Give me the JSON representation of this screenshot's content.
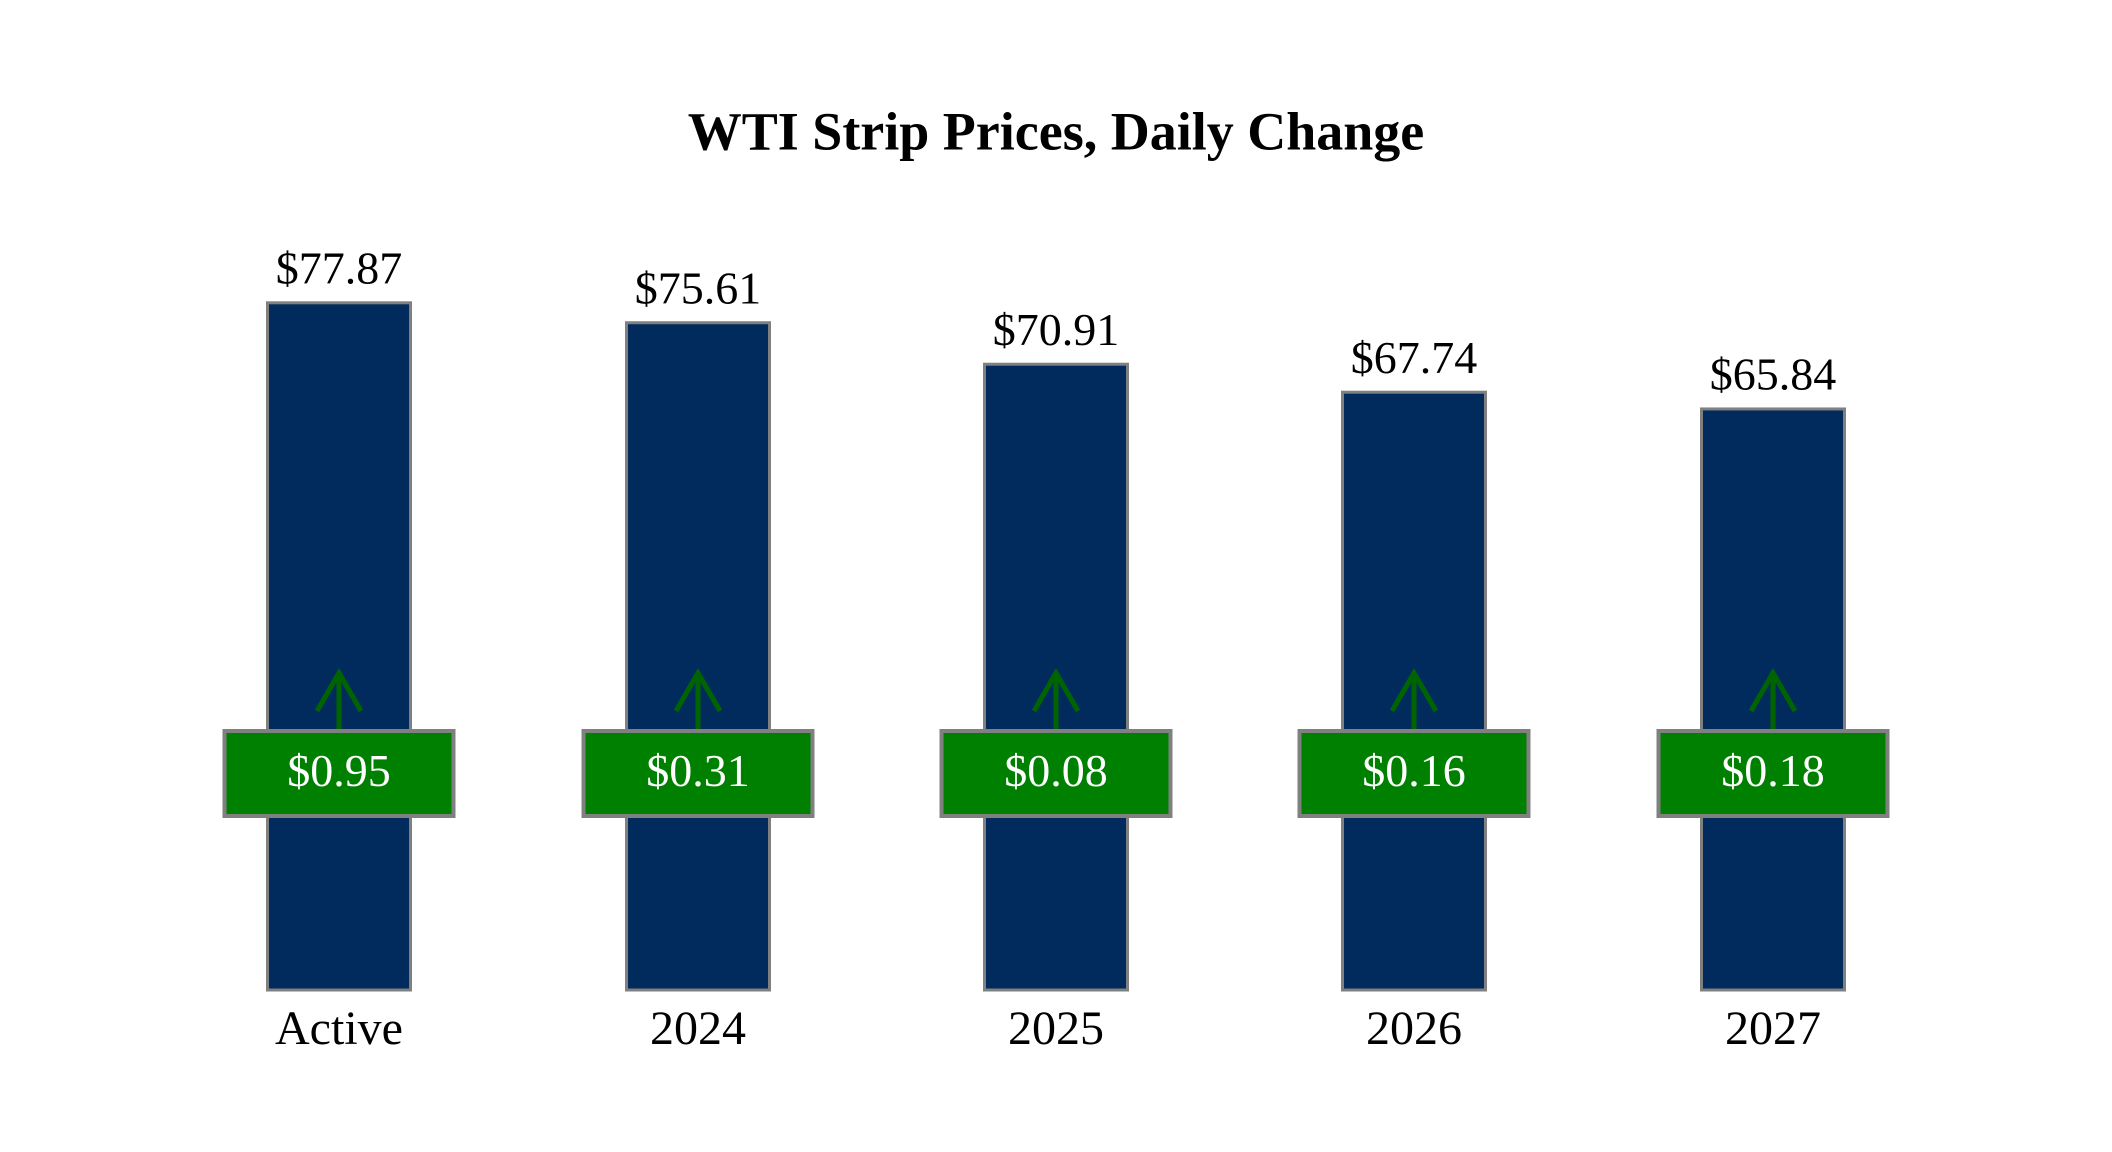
{
  "chart_data": {
    "type": "bar",
    "title": "WTI Strip Prices, Daily Change",
    "categories": [
      "Active",
      "2024",
      "2025",
      "2026",
      "2027"
    ],
    "values": [
      77.87,
      75.61,
      70.91,
      67.74,
      65.84
    ],
    "value_labels": [
      "$77.87",
      "$75.61",
      "$70.91",
      "$67.74",
      "$65.84"
    ],
    "color": "#002b5c",
    "ylim": [
      0,
      80
    ],
    "change": {
      "values": [
        0.95,
        0.31,
        0.08,
        0.16,
        0.18
      ],
      "value_labels": [
        "$0.95",
        "$0.31",
        "$0.08",
        "$0.16",
        "$0.18"
      ],
      "color": "#008000"
    }
  }
}
